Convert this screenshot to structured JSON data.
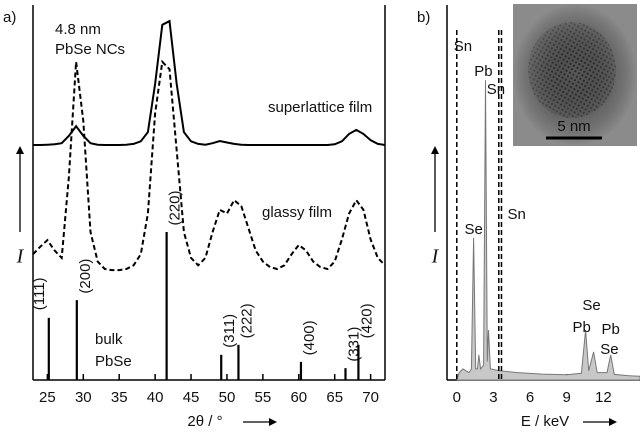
{
  "chart_data": [
    {
      "type": "line",
      "panel_label": "a)",
      "x_label": "2θ / °",
      "y_label": "I",
      "xlim": [
        23,
        72
      ],
      "xticks": [
        25,
        30,
        35,
        40,
        45,
        50,
        55,
        60,
        65,
        70
      ],
      "ylim": [
        0,
        100
      ],
      "sample_label": [
        "4.8 nm",
        "PbSe NCs"
      ],
      "series": [
        {
          "name": "superlattice film",
          "color": "#000000",
          "style": "solid",
          "x": [
            23,
            24,
            25,
            26,
            27,
            28,
            29,
            30,
            31,
            32,
            33,
            34,
            35,
            36,
            37,
            38,
            39,
            40,
            41,
            42,
            43,
            44,
            45,
            46,
            47,
            48,
            49,
            50,
            51,
            52,
            53,
            54,
            55,
            56,
            57,
            58,
            59,
            60,
            61,
            62,
            63,
            64,
            65,
            66,
            67,
            68,
            69,
            70,
            71,
            72
          ],
          "values": [
            63.5,
            63.5,
            63.6,
            63.7,
            64,
            66,
            68.6,
            66,
            64,
            63.6,
            63.5,
            63.5,
            63.5,
            63.6,
            63.8,
            64.5,
            67,
            80,
            96,
            97,
            80,
            67,
            64.5,
            63.8,
            63.6,
            64,
            64.6,
            64.2,
            63.8,
            63.6,
            63.5,
            63.5,
            63.5,
            63.5,
            63.5,
            63.5,
            63.5,
            63.5,
            63.5,
            63.5,
            63.5,
            63.5,
            63.7,
            64.5,
            66.5,
            67.6,
            66.5,
            64.8,
            63.8,
            63.5
          ]
        },
        {
          "name": "glassy film",
          "color": "#000000",
          "style": "dashed",
          "x": [
            23,
            24,
            25,
            26,
            27,
            28,
            29,
            30,
            31,
            32,
            33,
            34,
            35,
            36,
            37,
            38,
            39,
            40,
            41,
            42,
            43,
            44,
            45,
            46,
            47,
            48,
            49,
            50,
            51,
            52,
            53,
            54,
            55,
            56,
            57,
            58,
            59,
            60,
            61,
            62,
            63,
            64,
            65,
            66,
            67,
            68,
            69,
            70,
            71,
            72
          ],
          "values": [
            34,
            36,
            37.8,
            35,
            33,
            55,
            86,
            70,
            40,
            32,
            30,
            29.7,
            29.7,
            30,
            31,
            34,
            45,
            72,
            86,
            84,
            62,
            40,
            33,
            31,
            33,
            40,
            46,
            45,
            48.6,
            47,
            41,
            35,
            32,
            30.5,
            30,
            31,
            34,
            36.5,
            35,
            32,
            30.5,
            30,
            32,
            38,
            45,
            48.6,
            46,
            38,
            33,
            31
          ]
        }
      ],
      "sticks": {
        "name": [
          "bulk",
          "PbSe"
        ],
        "color": "#000000",
        "categories": [
          "(111)",
          "(200)",
          "(220)",
          "(311)",
          "(222)",
          "(400)",
          "(331)",
          "(420)"
        ],
        "x": [
          25.2,
          29.1,
          41.6,
          49.2,
          51.6,
          60.3,
          66.5,
          68.3
        ],
        "values": [
          16.8,
          21.6,
          40,
          6.8,
          9.5,
          4.9,
          3.2,
          9.5
        ]
      }
    },
    {
      "type": "area",
      "panel_label": "b)",
      "x_label": "E / keV",
      "y_label": "I",
      "xlim": [
        -0.8,
        15
      ],
      "xticks": [
        0,
        3,
        6,
        9,
        12
      ],
      "ylim": [
        0,
        100
      ],
      "series": [
        {
          "color": "#c8c8c8",
          "x": [
            0,
            0.2,
            0.5,
            1.0,
            1.2,
            1.38,
            1.55,
            1.7,
            1.8,
            1.95,
            2.2,
            2.35,
            2.5,
            2.6,
            2.75,
            3.5,
            5,
            7,
            9,
            10.2,
            10.55,
            10.8,
            11.2,
            11.5,
            12.3,
            12.6,
            12.9,
            14,
            15
          ],
          "values": [
            0,
            2,
            3,
            2,
            3,
            38.4,
            3,
            3,
            6.8,
            3,
            4,
            81,
            5,
            13.5,
            3,
            2.5,
            2,
            1.6,
            1.4,
            1.8,
            13.5,
            2.5,
            7.6,
            2,
            2,
            6.8,
            1.5,
            1.2,
            1
          ]
        }
      ],
      "reference_lines": {
        "x": [
          0,
          3.44,
          3.66
        ],
        "labels": [
          "Sn",
          "Sn",
          "Sn"
        ]
      },
      "peak_labels": [
        {
          "text": "Se",
          "x": 1.38
        },
        {
          "text": "Pb",
          "x": 2.35
        },
        {
          "text": "Pb",
          "x": 10.55
        },
        {
          "text": "Se",
          "x": 11.2
        },
        {
          "text": "Pb",
          "x": 12.6
        },
        {
          "text": "Se",
          "x": 12.5
        }
      ],
      "inset_scale_bar": "5 nm"
    }
  ]
}
